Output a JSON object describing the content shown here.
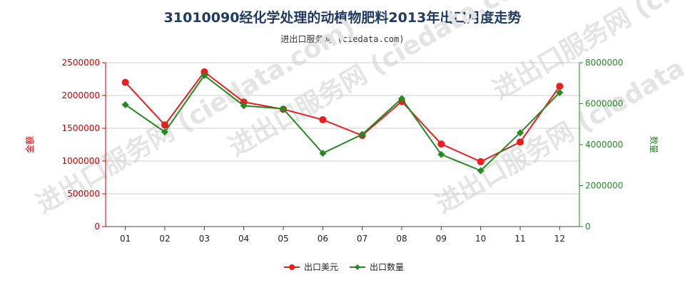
{
  "header": {
    "title": "31010090经化学处理的动植物肥料2013年出口月度走势",
    "subtitle": "进出口服务网 (ciedata.com)"
  },
  "watermark": "进出口服务网 (ciedata.com)",
  "colors": {
    "left_axis": "#cc0000",
    "right_axis": "#228b22",
    "series_value": "#ee1c1c",
    "series_quantity": "#228b22",
    "grid": "#cccccc"
  },
  "chart_data": {
    "type": "line",
    "categories": [
      "01",
      "02",
      "03",
      "04",
      "05",
      "06",
      "07",
      "08",
      "09",
      "10",
      "11",
      "12"
    ],
    "series": [
      {
        "name": "出口美元",
        "axis": "left",
        "color": "#ee1c1c",
        "marker": "circle",
        "values": [
          2200000,
          1550000,
          2360000,
          1900000,
          1790000,
          1630000,
          1390000,
          1910000,
          1260000,
          990000,
          1290000,
          2140000
        ]
      },
      {
        "name": "出口数量",
        "axis": "right",
        "color": "#228b22",
        "marker": "diamond",
        "values": [
          5950000,
          4620000,
          7380000,
          5900000,
          5750000,
          3580000,
          4500000,
          6250000,
          3520000,
          2730000,
          4580000,
          6540000
        ]
      }
    ],
    "y_left": {
      "label": "金额",
      "min": 0,
      "max": 2500000,
      "ticks": [
        "0",
        "500000",
        "1000000",
        "1500000",
        "2000000",
        "2500000"
      ]
    },
    "y_right": {
      "label": "数量",
      "min": 0,
      "max": 8000000,
      "ticks": [
        "0",
        "2000000",
        "4000000",
        "6000000",
        "8000000"
      ]
    },
    "grid": "horizontal",
    "legend": "bottom-center"
  }
}
